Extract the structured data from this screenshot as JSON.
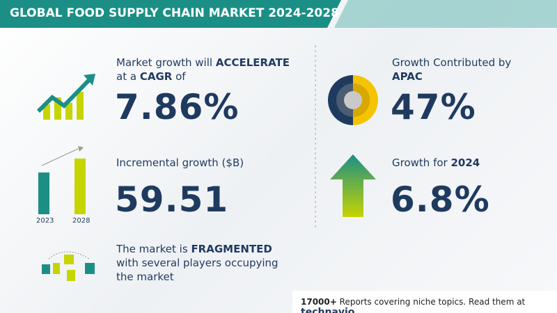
{
  "header": {
    "title": "GLOBAL FOOD SUPPLY CHAIN MARKET 2024-2028"
  },
  "left_panels": [
    {
      "lead": "Market growth will",
      "lead_bold": "ACCELERATE",
      "line2": "at a",
      "line2_bold": "CAGR",
      "line2_end": "of",
      "value": "7.86%"
    },
    {
      "lead": "Incremental growth ($B)",
      "value": "59.51",
      "icon_labels": [
        "2023",
        "2028"
      ]
    },
    {
      "lead": "The market is",
      "lead_bold": "FRAGMENTED",
      "rest": "with several players occupying the market"
    }
  ],
  "right_panels": [
    {
      "lead": "Growth Contributed by",
      "lead_bold": "APAC",
      "value": "47%"
    },
    {
      "lead": "Growth for",
      "lead_bold": "2024",
      "value": "6.8%"
    }
  ],
  "footer": {
    "count": "17000+",
    "text": "Reports covering niche topics. Read them at",
    "brand": "technavio"
  }
}
